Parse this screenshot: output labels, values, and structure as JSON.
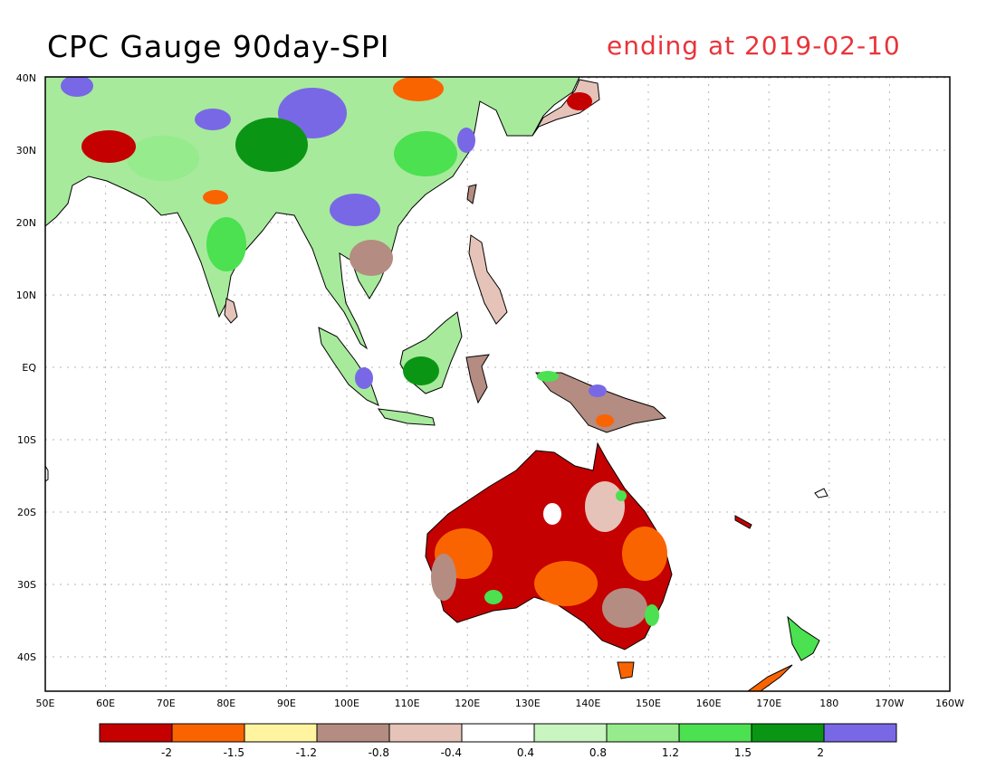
{
  "header": {
    "title": "CPC Gauge 90day-SPI",
    "date_label": "ending at 2019-02-10",
    "date_color": "#e8343a"
  },
  "map": {
    "region": "South Asia, Southeast Asia, Australia, New Zealand",
    "lat_labels": [
      "40N",
      "30N",
      "20N",
      "10N",
      "EQ",
      "10S",
      "20S",
      "30S",
      "40S"
    ],
    "lon_labels": [
      "50E",
      "60E",
      "70E",
      "80E",
      "90E",
      "100E",
      "110E",
      "120E",
      "130E",
      "140E",
      "150E",
      "160E",
      "170E",
      "180",
      "170W",
      "160W"
    ],
    "grid": true,
    "grid_style": "dotted"
  },
  "legend": {
    "colors": [
      "#c40000",
      "#fa6400",
      "#fff5a0",
      "#b48c82",
      "#e6c3b9",
      "#ffffff",
      "#c8f5c0",
      "#96eb8c",
      "#4be150",
      "#0a9614",
      "#7868e6"
    ],
    "tick_labels": [
      "-2",
      "-1.5",
      "-1.2",
      "-0.8",
      "-0.4",
      "0.4",
      "0.8",
      "1.2",
      "1.5",
      "2"
    ]
  }
}
